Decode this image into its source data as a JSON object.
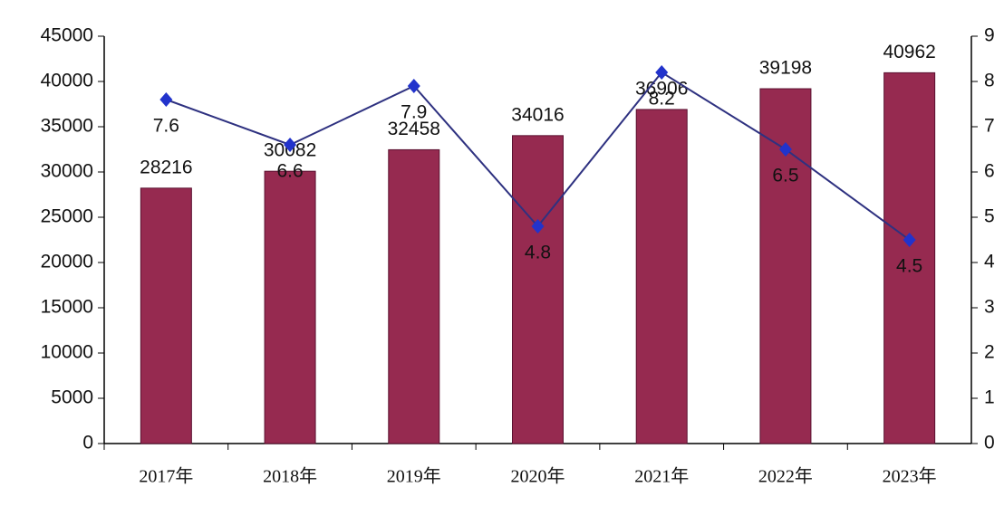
{
  "chart_data": {
    "type": "bar-line",
    "categories": [
      "2017年",
      "2018年",
      "2019年",
      "2020年",
      "2021年",
      "2022年",
      "2023年"
    ],
    "series": [
      {
        "type": "bar",
        "color": "#962a50",
        "values": [
          28216,
          30082,
          32458,
          34016,
          36906,
          39198,
          40962
        ]
      },
      {
        "type": "line",
        "axis": "y2",
        "color": "#2e3180",
        "marker_color": "#2233cc",
        "values": [
          7.6,
          6.6,
          7.9,
          4.8,
          8.2,
          6.5,
          4.5
        ]
      }
    ],
    "ylim": [
      0,
      45000
    ],
    "yticks": [
      0,
      5000,
      10000,
      15000,
      20000,
      25000,
      30000,
      35000,
      40000,
      45000
    ],
    "y2lim": [
      0,
      9
    ],
    "y2ticks": [
      0,
      1,
      2,
      3,
      4,
      5,
      6,
      7,
      8,
      9
    ]
  }
}
